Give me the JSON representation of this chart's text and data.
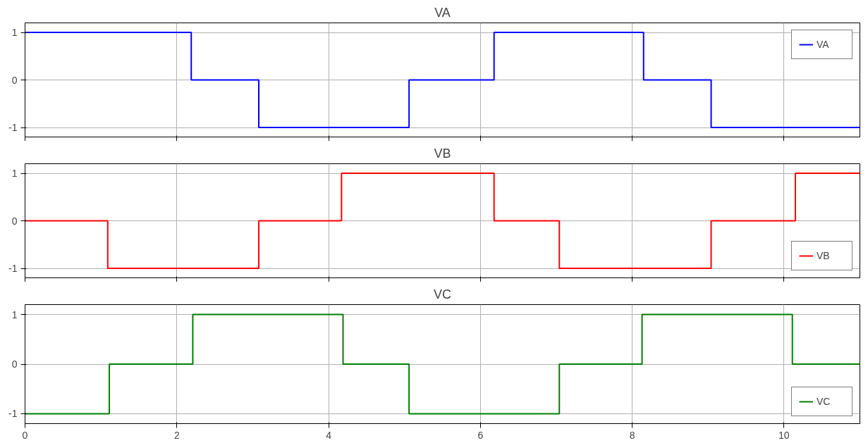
{
  "chart_data": [
    {
      "type": "step",
      "title": "VA",
      "x": [
        0,
        2.19,
        3.08,
        5.06,
        6.18,
        8.15,
        9.04,
        11
      ],
      "series": [
        {
          "name": "VA",
          "color": "#0000ff",
          "values": [
            1,
            0,
            -1,
            0,
            1,
            0,
            -1,
            -1
          ]
        }
      ],
      "xlim": [
        0,
        11
      ],
      "xticks": [
        0,
        2,
        4,
        6,
        8,
        10
      ],
      "ylim": [
        -1.2,
        1.2
      ],
      "yticks": [
        -1,
        0,
        1
      ],
      "grid": true,
      "legend": "top right",
      "tick_labels": "y"
    },
    {
      "type": "step",
      "title": "VB",
      "x": [
        0,
        1.09,
        3.08,
        4.17,
        6.18,
        7.04,
        9.04,
        10.15,
        11
      ],
      "series": [
        {
          "name": "VB",
          "color": "#ff0000",
          "values": [
            0,
            -1,
            0,
            1,
            0,
            -1,
            0,
            1,
            1
          ]
        }
      ],
      "xlim": [
        0,
        11
      ],
      "xticks": [
        0,
        2,
        4,
        6,
        8,
        10
      ],
      "ylim": [
        -1.2,
        1.2
      ],
      "yticks": [
        -1,
        0,
        1
      ],
      "grid": true,
      "legend": "bottom right",
      "tick_labels": "y"
    },
    {
      "type": "step",
      "title": "VC",
      "x": [
        0,
        1.11,
        2.21,
        4.19,
        5.06,
        7.04,
        8.13,
        10.11,
        11
      ],
      "series": [
        {
          "name": "VC",
          "color": "#008000",
          "values": [
            -1,
            0,
            1,
            0,
            -1,
            0,
            1,
            0,
            0
          ]
        }
      ],
      "xlim": [
        0,
        11
      ],
      "xticks": [
        0,
        2,
        4,
        6,
        8,
        10
      ],
      "ylim": [
        -1.2,
        1.2
      ],
      "yticks": [
        -1,
        0,
        1
      ],
      "grid": true,
      "legend": "bottom right"
    }
  ]
}
